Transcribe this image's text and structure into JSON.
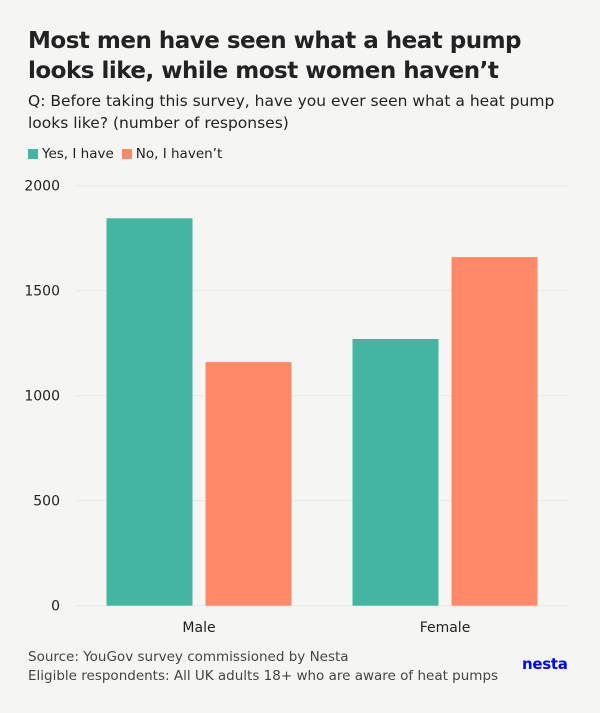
{
  "chart_data": {
    "type": "bar",
    "title": "Most men have seen what a heat pump looks like, while most women haven’t",
    "subtitle": "Q: Before taking this survey, have you ever seen what a heat pump looks like? (number of responses)",
    "categories": [
      "Male",
      "Female"
    ],
    "series": [
      {
        "name": "Yes, I have",
        "color": "#44b5a0",
        "values": [
          1845,
          1270
        ]
      },
      {
        "name": "No, I haven’t",
        "color": "#ff8968",
        "values": [
          1160,
          1660
        ]
      }
    ],
    "ylim": [
      0,
      2000
    ],
    "yticks": [
      "0",
      "500",
      "1000",
      "1500",
      "2000"
    ],
    "grid": true,
    "legend": "top-left",
    "xlabel": "",
    "ylabel": ""
  },
  "footer": {
    "source": "Source: YouGov survey commissioned by Nesta",
    "note": "Eligible respondents: All UK adults 18+ who are aware of heat pumps"
  },
  "logo": "nesta"
}
